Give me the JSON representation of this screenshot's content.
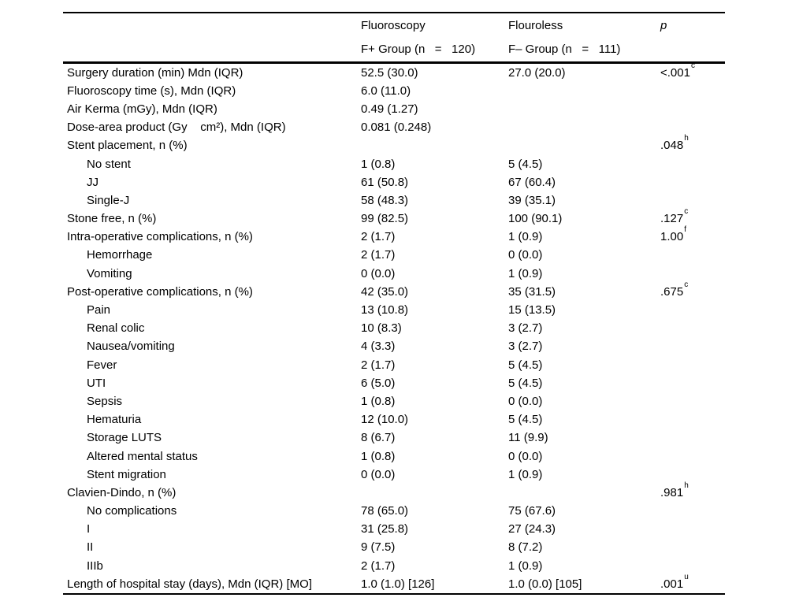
{
  "page": {
    "background": "#ffffff",
    "text_color": "#000000",
    "rule_color": "#000000"
  },
  "table": {
    "header": {
      "col2_line1": "Fluoroscopy",
      "col2_line2": "F+ Group (n   =   120)",
      "col3_line1": "Flouroless",
      "col3_line2": "F– Group (n   =   111)",
      "col4_line1": "p"
    },
    "rows": [
      {
        "label": "Surgery duration (min) Mdn (IQR)",
        "f_plus": "52.5 (30.0)",
        "f_minus": "27.0 (20.0)",
        "p": "<.001",
        "p_sup": "c"
      },
      {
        "label": "Fluoroscopy time (s), Mdn (IQR)",
        "f_plus": "6.0 (11.0)",
        "f_minus": "",
        "p": "",
        "p_sup": ""
      },
      {
        "label": "Air Kerma (mGy), Mdn (IQR)",
        "f_plus": "0.49 (1.27)",
        "f_minus": "",
        "p": "",
        "p_sup": ""
      },
      {
        "label": "Dose-area product (Gy    cm²), Mdn (IQR)",
        "f_plus": "0.081 (0.248)",
        "f_minus": "",
        "p": "",
        "p_sup": ""
      },
      {
        "label": "Stent placement, n (%)",
        "f_plus": "",
        "f_minus": "",
        "p": ".048",
        "p_sup": "h"
      },
      {
        "label": "No stent",
        "f_plus": "1 (0.8)",
        "f_minus": "5 (4.5)",
        "p": "",
        "p_sup": ""
      },
      {
        "label": "JJ",
        "f_plus": "61 (50.8)",
        "f_minus": "67 (60.4)",
        "p": "",
        "p_sup": ""
      },
      {
        "label": "Single-J",
        "f_plus": "58 (48.3)",
        "f_minus": "39 (35.1)",
        "p": "",
        "p_sup": ""
      },
      {
        "label": "Stone free, n (%)",
        "f_plus": "99 (82.5)",
        "f_minus": "100 (90.1)",
        "p": ".127",
        "p_sup": "c"
      },
      {
        "label": "Intra-operative complications, n (%)",
        "f_plus": "2 (1.7)",
        "f_minus": "1 (0.9)",
        "p": "1.00",
        "p_sup": "f"
      },
      {
        "label": "Hemorrhage",
        "f_plus": "2 (1.7)",
        "f_minus": "0 (0.0)",
        "p": "",
        "p_sup": ""
      },
      {
        "label": "Vomiting",
        "f_plus": "0 (0.0)",
        "f_minus": "1 (0.9)",
        "p": "",
        "p_sup": ""
      },
      {
        "label": "Post-operative complications, n (%)",
        "f_plus": "42 (35.0)",
        "f_minus": "35 (31.5)",
        "p": ".675",
        "p_sup": "c"
      },
      {
        "label": "Pain",
        "f_plus": "13 (10.8)",
        "f_minus": "15 (13.5)",
        "p": "",
        "p_sup": ""
      },
      {
        "label": "Renal colic",
        "f_plus": "10 (8.3)",
        "f_minus": "3 (2.7)",
        "p": "",
        "p_sup": ""
      },
      {
        "label": "Nausea/vomiting",
        "f_plus": "4 (3.3)",
        "f_minus": "3 (2.7)",
        "p": "",
        "p_sup": ""
      },
      {
        "label": "Fever",
        "f_plus": "2 (1.7)",
        "f_minus": "5 (4.5)",
        "p": "",
        "p_sup": ""
      },
      {
        "label": "UTI",
        "f_plus": "6 (5.0)",
        "f_minus": "5 (4.5)",
        "p": "",
        "p_sup": ""
      },
      {
        "label": "Sepsis",
        "f_plus": "1 (0.8)",
        "f_minus": "0 (0.0)",
        "p": "",
        "p_sup": ""
      },
      {
        "label": "Hematuria",
        "f_plus": "12 (10.0)",
        "f_minus": "5 (4.5)",
        "p": "",
        "p_sup": ""
      },
      {
        "label": "Storage LUTS",
        "f_plus": "8 (6.7)",
        "f_minus": "11 (9.9)",
        "p": "",
        "p_sup": ""
      },
      {
        "label": "Altered mental status",
        "f_plus": "1 (0.8)",
        "f_minus": "0 (0.0)",
        "p": "",
        "p_sup": ""
      },
      {
        "label": "Stent migration",
        "f_plus": "0 (0.0)",
        "f_minus": "1 (0.9)",
        "p": "",
        "p_sup": ""
      },
      {
        "label": "Clavien-Dindo, n (%)",
        "f_plus": "",
        "f_minus": "",
        "p": ".981",
        "p_sup": "h"
      },
      {
        "label": "No complications",
        "f_plus": "78 (65.0)",
        "f_minus": "75 (67.6)",
        "p": "",
        "p_sup": ""
      },
      {
        "label": "I",
        "f_plus": "31 (25.8)",
        "f_minus": "27 (24.3)",
        "p": "",
        "p_sup": ""
      },
      {
        "label": "II",
        "f_plus": "9 (7.5)",
        "f_minus": "8 (7.2)",
        "p": "",
        "p_sup": ""
      },
      {
        "label": "IIIb",
        "f_plus": "2 (1.7)",
        "f_minus": "1 (0.9)",
        "p": "",
        "p_sup": ""
      },
      {
        "label": "Length of hospital stay (days), Mdn (IQR) [MO]",
        "f_plus": "1.0 (1.0) [126]",
        "f_minus": "1.0 (0.0) [105]",
        "p": ".001",
        "p_sup": "u"
      }
    ]
  }
}
